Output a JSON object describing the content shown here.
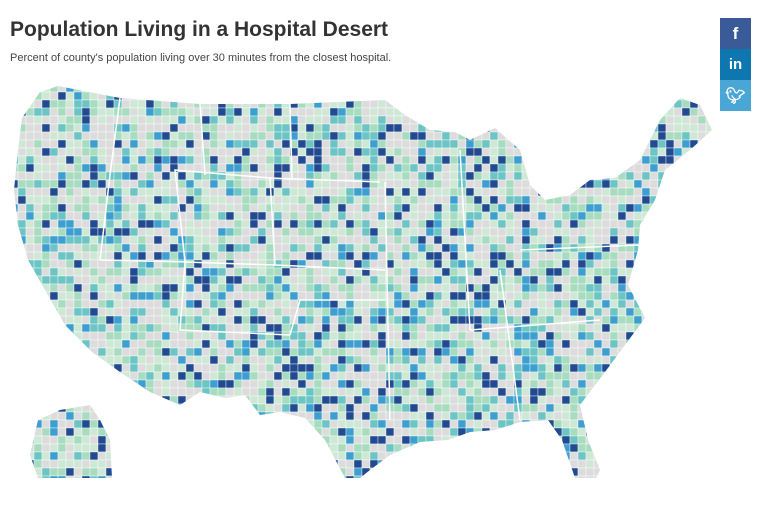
{
  "header": {
    "title": "Population Living in a Hospital Desert",
    "subtitle": "Percent of county's population living over 30 minutes from the closest hospital."
  },
  "share": [
    {
      "label": "f",
      "icon": "facebook-icon",
      "color": "#3b5a98"
    },
    {
      "label": "in",
      "icon": "linkedin-icon",
      "color": "#0f77b0"
    },
    {
      "label": "❦",
      "icon": "twitter-icon",
      "color": "#4aa6d4"
    }
  ],
  "map": {
    "type": "county choropleth",
    "palette": [
      "#dcdcdc",
      "#cfe8d6",
      "#a8dcc0",
      "#6cc4c4",
      "#3d9fd0",
      "#224a91"
    ],
    "border_color": "#ffffff"
  }
}
